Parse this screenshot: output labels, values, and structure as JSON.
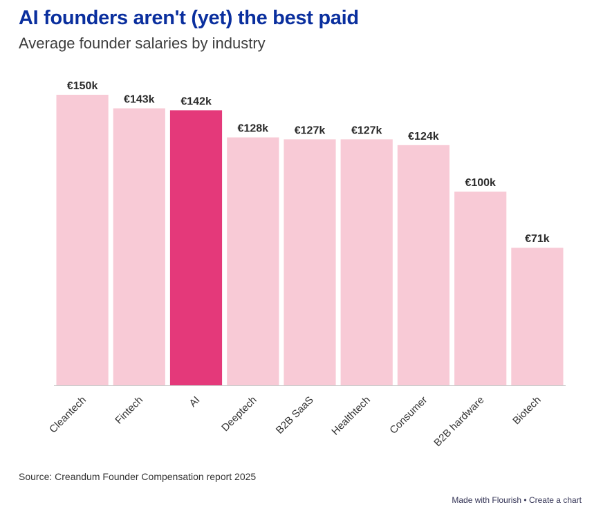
{
  "chart_data": {
    "type": "bar",
    "title": "AI founders aren't (yet) the best paid",
    "subtitle": "Average founder salaries by industry",
    "categories": [
      "Cleantech",
      "Fintech",
      "AI",
      "Deeptech",
      "B2B SaaS",
      "Healthtech",
      "Consumer",
      "B2B hardware",
      "Biotech"
    ],
    "values": [
      150,
      143,
      142,
      128,
      127,
      127,
      124,
      100,
      71
    ],
    "data_labels": [
      "€150k",
      "€143k",
      "€142k",
      "€128k",
      "€127k",
      "€127k",
      "€124k",
      "€100k",
      "€71k"
    ],
    "highlight": "AI",
    "unit": "€k",
    "ylim": [
      0,
      150
    ],
    "grid": false,
    "colors": {
      "bar": "#f8cad6",
      "highlight": "#e4397a",
      "label": "#2b2b2b",
      "axis": "#cccccc"
    }
  },
  "source": "Source: Creandum Founder Compensation report 2025",
  "footer": {
    "made_with": "Made with Flourish",
    "separator": "•",
    "create": "Create a chart"
  }
}
